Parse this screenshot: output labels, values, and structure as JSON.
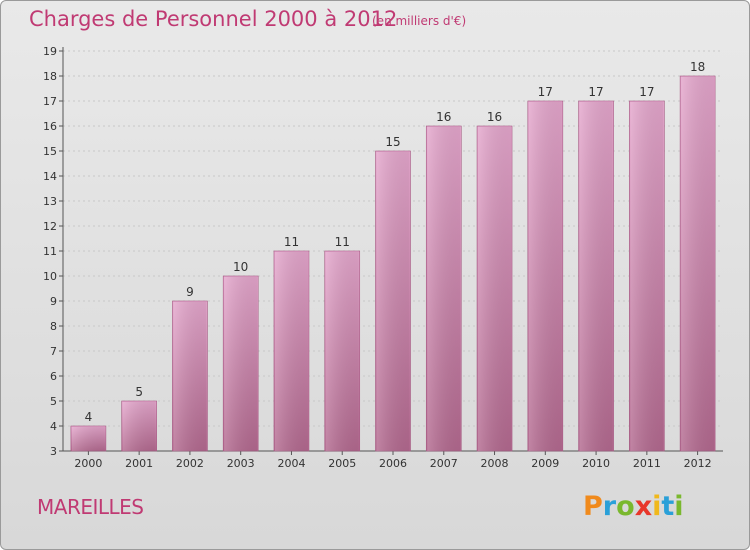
{
  "title": "Charges de Personnel 2000 à 2012",
  "subtitle": "(en milliers d'€)",
  "commune": "MAREILLES",
  "brand": {
    "letters": [
      "P",
      "r",
      "o",
      "x",
      "i",
      "t",
      "i"
    ],
    "colors": [
      "#f08a1c",
      "#2aa0d8",
      "#7ab82e",
      "#e8362a",
      "#f0b81c",
      "#2aa0d8",
      "#7ab82e"
    ]
  },
  "colors": {
    "bar_top": "#e4a6cc",
    "bar_bottom": "#b3698f",
    "text": "#c03a73",
    "axis_text": "#333333",
    "grid": "#c8c8c8"
  },
  "chart_data": {
    "type": "bar",
    "categories": [
      "2000",
      "2001",
      "2002",
      "2003",
      "2004",
      "2005",
      "2006",
      "2007",
      "2008",
      "2009",
      "2010",
      "2011",
      "2012"
    ],
    "values": [
      4,
      5,
      9,
      10,
      11,
      11,
      15,
      16,
      16,
      17,
      17,
      17,
      18
    ],
    "data_labels": [
      "4",
      "5",
      "9",
      "10",
      "11",
      "11",
      "15",
      "16",
      "16",
      "17",
      "17",
      "17",
      "18"
    ],
    "yticks": [
      "3",
      "4",
      "5",
      "6",
      "7",
      "8",
      "9",
      "10",
      "11",
      "12",
      "13",
      "14",
      "15",
      "16",
      "17",
      "18",
      "19"
    ],
    "ylim": [
      3,
      19
    ],
    "grid": true
  }
}
